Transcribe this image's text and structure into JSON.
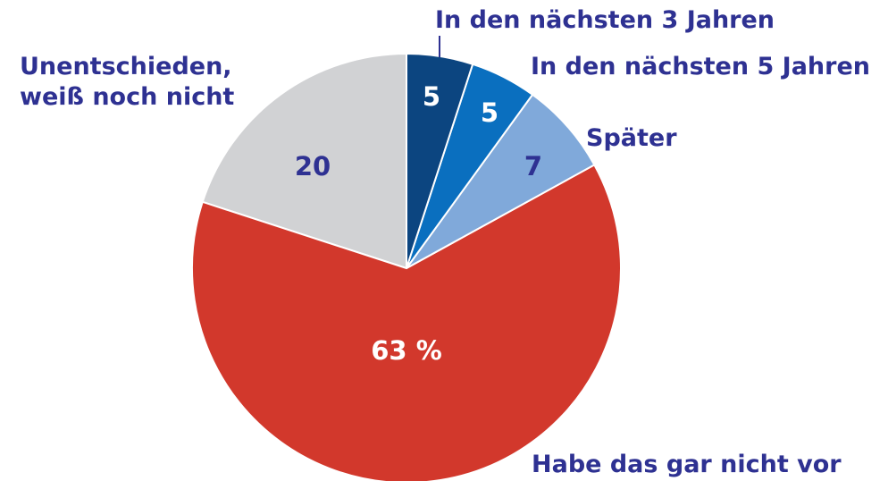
{
  "chart_data": {
    "type": "pie",
    "categories": [
      "In den nächsten 3 Jahren",
      "In den nächsten 5 Jahren",
      "Später",
      "Habe das gar nicht vor",
      "Unentschieden, weiß noch nicht"
    ],
    "values": [
      5,
      5,
      7,
      63,
      20
    ],
    "value_labels": [
      "5",
      "5",
      "7",
      "63 %",
      "20"
    ],
    "colors": [
      "#0c4580",
      "#0a6fbf",
      "#80a9da",
      "#d2382c",
      "#d1d2d4"
    ]
  }
}
